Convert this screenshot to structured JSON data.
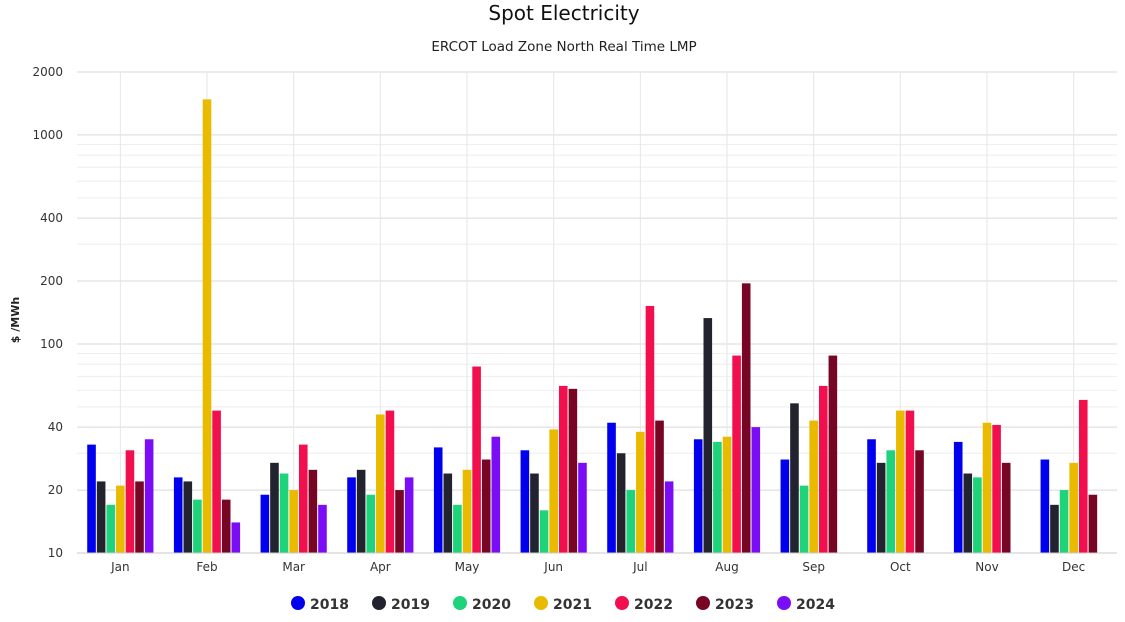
{
  "chart_data": {
    "type": "bar",
    "title": "Spot Electricity",
    "subtitle": "ERCOT Load Zone North Real Time LMP",
    "ylabel": "$ /MWh",
    "xlabel": "",
    "y_scale": "log",
    "ylim": [
      10,
      2000
    ],
    "y_ticks": [
      10,
      20,
      40,
      100,
      200,
      400,
      1000,
      2000
    ],
    "y_tick_labels": [
      "10",
      "20",
      "40",
      "100",
      "200",
      "400",
      "1000",
      "2000"
    ],
    "grid": true,
    "legend_position": "bottom-center",
    "categories": [
      "Jan",
      "Feb",
      "Mar",
      "Apr",
      "May",
      "Jun",
      "Jul",
      "Aug",
      "Sep",
      "Oct",
      "Nov",
      "Dec"
    ],
    "series": [
      {
        "name": "2018",
        "color": "#0000ee",
        "values": [
          33,
          23,
          19,
          23,
          32,
          31,
          42,
          35,
          28,
          35,
          34,
          28
        ]
      },
      {
        "name": "2019",
        "color": "#23232f",
        "values": [
          22,
          22,
          27,
          25,
          24,
          24,
          30,
          133,
          52,
          27,
          24,
          17
        ]
      },
      {
        "name": "2020",
        "color": "#1ed37a",
        "values": [
          17,
          18,
          24,
          19,
          17,
          16,
          20,
          34,
          21,
          31,
          23,
          20
        ]
      },
      {
        "name": "2021",
        "color": "#e9bb00",
        "values": [
          21,
          1480,
          20,
          46,
          25,
          39,
          38,
          36,
          43,
          48,
          42,
          27
        ]
      },
      {
        "name": "2022",
        "color": "#f20f4d",
        "values": [
          31,
          48,
          33,
          48,
          78,
          63,
          152,
          88,
          63,
          48,
          41,
          54
        ]
      },
      {
        "name": "2023",
        "color": "#760624",
        "values": [
          22,
          18,
          25,
          20,
          28,
          61,
          43,
          195,
          88,
          31,
          27,
          19
        ]
      },
      {
        "name": "2024",
        "color": "#7a0df5",
        "values": [
          35,
          14,
          17,
          23,
          36,
          27,
          22,
          40,
          null,
          null,
          null,
          null
        ]
      }
    ]
  }
}
